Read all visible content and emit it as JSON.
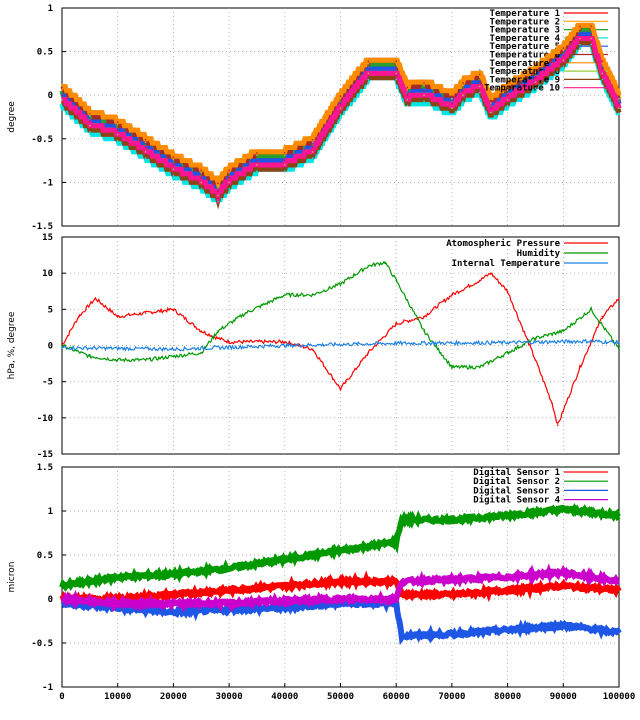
{
  "chart_data": [
    {
      "type": "line",
      "ylabel": "degree",
      "ylim": [
        -1.5,
        1
      ],
      "yticks": [
        "1",
        "0.5",
        "0",
        "-0.5",
        "-1",
        "-1.5"
      ],
      "xlim": [
        0,
        100000
      ],
      "grid": true,
      "legend": "top-right",
      "series": [
        {
          "name": "Temperature 1",
          "color": "#ff0000",
          "offset": 0.0,
          "x": [
            0,
            5000,
            10000,
            15000,
            20000,
            25000,
            28000,
            30000,
            35000,
            40000,
            45000,
            50000,
            55000,
            60000,
            62000,
            65000,
            70000,
            72000,
            75000,
            77000,
            80000,
            85000,
            90000,
            93000,
            95000,
            97000,
            100000
          ],
          "y": [
            0.0,
            -0.3,
            -0.4,
            -0.6,
            -0.8,
            -0.95,
            -1.1,
            -0.95,
            -0.75,
            -0.75,
            -0.6,
            -0.1,
            0.3,
            0.3,
            0.0,
            0.05,
            -0.1,
            0.05,
            0.15,
            -0.15,
            0.0,
            0.2,
            0.45,
            0.7,
            0.7,
            0.3,
            -0.1
          ]
        },
        {
          "name": "Temperature 2",
          "color": "#ffa500",
          "offset": 0.06
        },
        {
          "name": "Temperature 3",
          "color": "#2aa02a",
          "offset": 0.03
        },
        {
          "name": "Temperature 4",
          "color": "#00e5e5",
          "offset": -0.12
        },
        {
          "name": "Temperature 5",
          "color": "#1e56e6",
          "offset": 0.01
        },
        {
          "name": "Temperature 6",
          "color": "#a52a2a",
          "offset": 0.09
        },
        {
          "name": "Temperature 7",
          "color": "#ff8c00",
          "offset": 0.12
        },
        {
          "name": "Temperature 8",
          "color": "#9acd32",
          "offset": -0.05
        },
        {
          "name": "Temperature 9",
          "color": "#8b4513",
          "offset": -0.08
        },
        {
          "name": "Temperature 10",
          "color": "#ff1493",
          "offset": -0.03
        }
      ]
    },
    {
      "type": "line",
      "ylabel": "hPa, %, degree",
      "ylim": [
        -15,
        15
      ],
      "yticks": [
        "15",
        "10",
        "5",
        "0",
        "-5",
        "-10",
        "-15"
      ],
      "xlim": [
        0,
        100000
      ],
      "grid": true,
      "legend": "top-right",
      "series": [
        {
          "name": "Atomospheric Pressure",
          "color": "#ff0000",
          "x": [
            0,
            3000,
            6000,
            10000,
            15000,
            20000,
            25000,
            28000,
            30000,
            40000,
            45000,
            50000,
            51000,
            55000,
            60000,
            65000,
            70000,
            75000,
            77000,
            80000,
            85000,
            88000,
            89000,
            93000,
            97000,
            100000
          ],
          "y": [
            0,
            4,
            6.5,
            4,
            4.5,
            5,
            2,
            1,
            0.5,
            0.5,
            -0.5,
            -6,
            -5,
            -1,
            3,
            4,
            7,
            9,
            10,
            7.5,
            -2,
            -8,
            -11,
            -3,
            4,
            6.5
          ]
        },
        {
          "name": "Humidity",
          "color": "#009900",
          "x": [
            0,
            5000,
            10000,
            15000,
            20000,
            25000,
            28000,
            33000,
            40000,
            45000,
            50000,
            55000,
            58000,
            60000,
            65000,
            68000,
            70000,
            75000,
            80000,
            85000,
            90000,
            95000,
            100000
          ],
          "y": [
            0,
            -1.5,
            -2,
            -2,
            -1.5,
            -1,
            2,
            4.5,
            7,
            7,
            8.5,
            11,
            11.5,
            9,
            2,
            -1,
            -3,
            -3,
            -1,
            1,
            2,
            5,
            -0.5
          ]
        },
        {
          "name": "Internal Temperature",
          "color": "#1e82e6",
          "x": [
            0,
            20000,
            40000,
            60000,
            80000,
            95000,
            100000
          ],
          "y": [
            -0.3,
            -0.5,
            0,
            0.3,
            0.4,
            0.6,
            0.4
          ]
        }
      ]
    },
    {
      "type": "line",
      "ylabel": "micron",
      "ylim": [
        -1,
        1.5
      ],
      "yticks": [
        "1.5",
        "1",
        "0.5",
        "0",
        "-0.5",
        "-1"
      ],
      "xlim": [
        0,
        100000
      ],
      "xticks": [
        "0",
        "10000",
        "20000",
        "30000",
        "40000",
        "50000",
        "60000",
        "70000",
        "80000",
        "90000",
        "100000"
      ],
      "grid": true,
      "legend": "top-right",
      "series": [
        {
          "name": "Digital Sensor 1",
          "color": "#ff0000",
          "x": [
            0,
            10000,
            20000,
            30000,
            40000,
            50000,
            60000,
            61000,
            70000,
            80000,
            90000,
            100000
          ],
          "y": [
            0,
            0,
            0.05,
            0.1,
            0.15,
            0.2,
            0.2,
            0.05,
            0.05,
            0.1,
            0.15,
            0.1
          ]
        },
        {
          "name": "Digital Sensor 2",
          "color": "#009900",
          "x": [
            0,
            10000,
            20000,
            30000,
            40000,
            50000,
            60000,
            61000,
            70000,
            80000,
            90000,
            100000
          ],
          "y": [
            0.15,
            0.25,
            0.28,
            0.35,
            0.45,
            0.55,
            0.65,
            0.9,
            0.9,
            0.95,
            1.02,
            0.95
          ]
        },
        {
          "name": "Digital Sensor 3",
          "color": "#1e56e6",
          "x": [
            0,
            10000,
            20000,
            30000,
            40000,
            50000,
            60000,
            61000,
            70000,
            80000,
            90000,
            100000
          ],
          "y": [
            -0.05,
            -0.1,
            -0.15,
            -0.12,
            -0.1,
            -0.05,
            -0.05,
            -0.42,
            -0.4,
            -0.35,
            -0.3,
            -0.38
          ]
        },
        {
          "name": "Digital Sensor 4",
          "color": "#cc00cc",
          "x": [
            0,
            10000,
            20000,
            30000,
            40000,
            50000,
            60000,
            61000,
            70000,
            80000,
            90000,
            100000
          ],
          "y": [
            0,
            -0.05,
            -0.05,
            -0.05,
            -0.02,
            0.0,
            0.0,
            0.2,
            0.22,
            0.25,
            0.3,
            0.2
          ]
        }
      ]
    }
  ]
}
